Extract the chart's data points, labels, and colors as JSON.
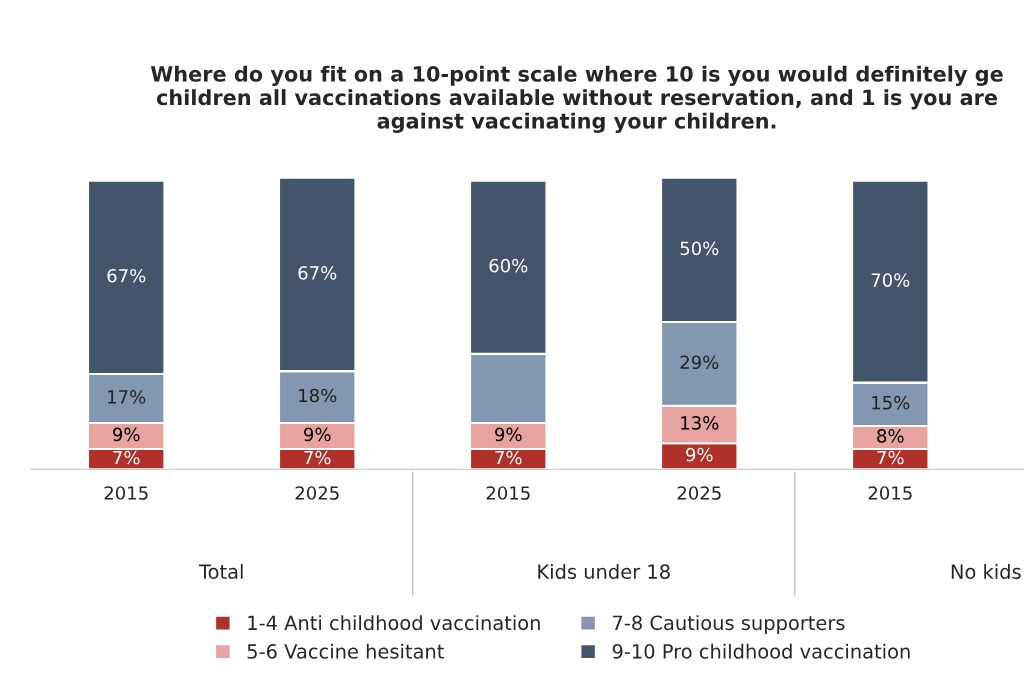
{
  "chart_data": {
    "type": "bar",
    "stacked": true,
    "title": "Where do you fit on a 10-point scale where 10 is you would definitely ge\nchildren all vaccinations available without reservation, and 1 is you are\nagainst vaccinating your children.",
    "categories": [
      "2015",
      "2025",
      "2015",
      "2025",
      "2015"
    ],
    "series": [
      {
        "name": "1-4 Anti childhood vaccination",
        "color": "#b0302a",
        "values": [
          7,
          7,
          7,
          9,
          7
        ],
        "value_labels": [
          "7%",
          "7%",
          "7%",
          "9%",
          "7%"
        ]
      },
      {
        "name": "5-6 Vaccine hesitant",
        "color": "#e6a3a0",
        "values": [
          9,
          9,
          9,
          13,
          8
        ],
        "value_labels": [
          "9%",
          "9%",
          "9%",
          "13%",
          "8%"
        ]
      },
      {
        "name": "7-8 Cautious supporters",
        "color": "#8497b0",
        "values": [
          17,
          18,
          24,
          29,
          15
        ],
        "value_labels": [
          "17%",
          "18%",
          null,
          "29%",
          "15%"
        ]
      },
      {
        "name": "9-10 Pro childhood vaccination",
        "color": "#44546a",
        "values": [
          67,
          67,
          60,
          50,
          70
        ],
        "value_labels": [
          "67%",
          "67%",
          "60%",
          "50%",
          "70%"
        ]
      }
    ],
    "annotations": [
      "Total",
      "Kids under 18",
      "No kids"
    ],
    "legend": "bottom",
    "grid": false
  }
}
